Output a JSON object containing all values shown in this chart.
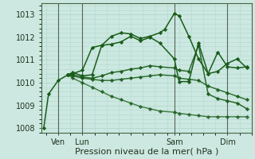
{
  "bg_color": "#cce8e0",
  "grid_color": "#b0d8d0",
  "line_color": "#1a5c1a",
  "ylim": [
    1007.8,
    1013.5
  ],
  "yticks": [
    1008,
    1009,
    1010,
    1011,
    1012,
    1013
  ],
  "xlabel": "Pression niveau de la mer( hPa )",
  "xlabel_fontsize": 8.0,
  "vline_color": "#556655",
  "series": [
    {
      "x": [
        0,
        0.5,
        1.5,
        2.5,
        3,
        4,
        5,
        6,
        7,
        8,
        9,
        10,
        11,
        12,
        12.5,
        13.5,
        14,
        15,
        16,
        17,
        18,
        19,
        20,
        21
      ],
      "y": [
        1008.0,
        1009.5,
        1010.1,
        1010.35,
        1010.4,
        1010.55,
        1011.55,
        1011.65,
        1012.05,
        1012.2,
        1012.15,
        1011.95,
        1012.05,
        1012.2,
        1012.35,
        1013.05,
        1012.95,
        1012.05,
        1011.05,
        1010.4,
        1011.35,
        1010.7,
        1010.65,
        1010.7
      ],
      "marker": "D",
      "markersize": 2.2,
      "linewidth": 1.1,
      "alpha": 1.0
    },
    {
      "x": [
        2.5,
        3,
        4,
        5,
        6,
        7,
        8,
        9,
        10,
        11,
        12,
        13.5,
        14,
        15,
        16,
        17,
        18,
        19,
        20,
        21
      ],
      "y": [
        1010.35,
        1010.45,
        1010.3,
        1010.35,
        1011.65,
        1011.7,
        1011.8,
        1012.05,
        1011.85,
        1012.0,
        1011.75,
        1011.05,
        1010.05,
        1010.05,
        1011.75,
        1010.4,
        1010.5,
        1010.85,
        1011.05,
        1010.65
      ],
      "marker": "D",
      "markersize": 2.2,
      "linewidth": 1.1,
      "alpha": 1.0
    },
    {
      "x": [
        2.5,
        3,
        4,
        5,
        6,
        7,
        8,
        9,
        10,
        11,
        12,
        13.5,
        14,
        15,
        16,
        17,
        18,
        19,
        20,
        21
      ],
      "y": [
        1010.35,
        1010.35,
        1010.25,
        1010.2,
        1010.3,
        1010.45,
        1010.5,
        1010.6,
        1010.65,
        1010.75,
        1010.7,
        1010.65,
        1010.55,
        1010.5,
        1011.65,
        1009.5,
        1009.3,
        1009.2,
        1009.1,
        1008.85
      ],
      "marker": "D",
      "markersize": 2.2,
      "linewidth": 1.1,
      "alpha": 0.9
    },
    {
      "x": [
        2.5,
        3,
        4,
        5,
        6,
        7,
        8,
        9,
        10,
        11,
        12,
        13.5,
        14,
        15,
        16,
        17,
        18,
        19,
        20,
        21
      ],
      "y": [
        1010.35,
        1010.3,
        1010.2,
        1010.15,
        1010.1,
        1010.1,
        1010.15,
        1010.2,
        1010.25,
        1010.3,
        1010.35,
        1010.3,
        1010.2,
        1010.15,
        1010.1,
        1009.85,
        1009.7,
        1009.55,
        1009.4,
        1009.25
      ],
      "marker": "D",
      "markersize": 2.2,
      "linewidth": 1.1,
      "alpha": 0.85
    },
    {
      "x": [
        2.5,
        3,
        4,
        5,
        6,
        7,
        8,
        9,
        10,
        11,
        12,
        13.5,
        14,
        15,
        16,
        17,
        18,
        19,
        20,
        21
      ],
      "y": [
        1010.35,
        1010.2,
        1010.0,
        1009.8,
        1009.6,
        1009.4,
        1009.25,
        1009.1,
        1008.95,
        1008.85,
        1008.75,
        1008.7,
        1008.65,
        1008.6,
        1008.55,
        1008.5,
        1008.5,
        1008.5,
        1008.5,
        1008.5
      ],
      "marker": "D",
      "markersize": 2.2,
      "linewidth": 1.1,
      "alpha": 0.75
    }
  ],
  "xtick_positions": [
    1.5,
    4,
    13.5,
    19
  ],
  "xtick_labels": [
    "Ven",
    "Lun",
    "Sam",
    "Dim"
  ],
  "vline_positions": [
    1.5,
    4,
    13.5,
    19
  ],
  "xlim": [
    -0.2,
    21.5
  ]
}
